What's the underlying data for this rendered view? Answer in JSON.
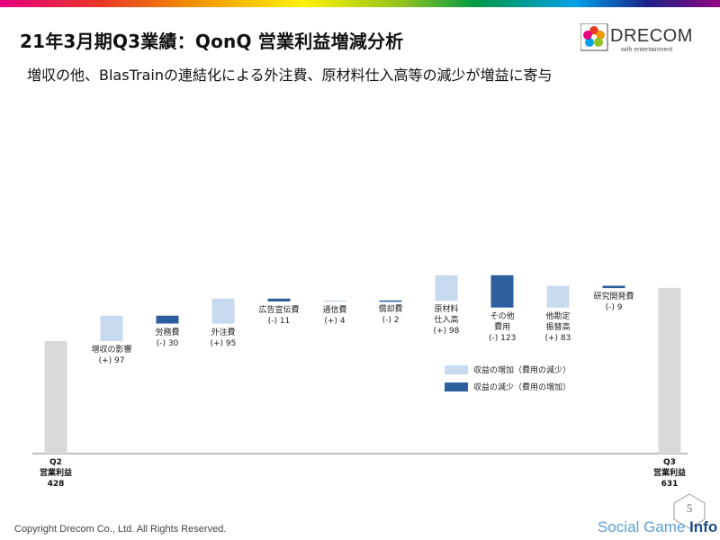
{
  "header": {
    "title": "21年3月期Q3業績：QonQ 営業利益増減分析",
    "subtitle": "増収の他、BlasTrainの連結化による外注費、原材料仕入高等の減少が増益に寄与"
  },
  "logo": {
    "name": "DRECOM",
    "tagline": "with entertainment"
  },
  "colors": {
    "increase": "#c8daf0",
    "decrease": "#2d5e9e",
    "total": "#d9d9d9",
    "axis": "#7f7f7f"
  },
  "chart_data": {
    "type": "bar",
    "subtype": "waterfall",
    "ylim": [
      0,
      1110
    ],
    "start": {
      "label_line1": "Q2",
      "label_line2": "営業利益",
      "value": 428,
      "value_text": "428"
    },
    "end": {
      "label_line1": "Q3",
      "label_line2": "営業利益",
      "value": 631,
      "value_text": "631"
    },
    "steps": [
      {
        "name": "増収の影響",
        "sign": "(+)",
        "value": 97,
        "value_text": "97",
        "effect": "increase"
      },
      {
        "name": "労務費",
        "sign": "(-)",
        "value": 30,
        "value_text": "30",
        "effect": "decrease"
      },
      {
        "name": "外注費",
        "sign": "(+)",
        "value": 95,
        "value_text": "95",
        "effect": "increase"
      },
      {
        "name": "広告宣伝費",
        "sign": "(-)",
        "value": 11,
        "value_text": "11",
        "effect": "decrease"
      },
      {
        "name": "通信費",
        "sign": "(+)",
        "value": 4,
        "value_text": "4",
        "effect": "increase"
      },
      {
        "name": "償却費",
        "sign": "(-)",
        "value": 2,
        "value_text": "2",
        "effect": "decrease"
      },
      {
        "name": "原材料\n仕入高",
        "sign": "(+)",
        "value": 98,
        "value_text": "98",
        "effect": "increase"
      },
      {
        "name": "その他\n費用",
        "sign": "(-)",
        "value": 123,
        "value_text": "123",
        "effect": "decrease"
      },
      {
        "name": "他勘定\n振替高",
        "sign": "(+)",
        "value": 83,
        "value_text": "83",
        "effect": "increase"
      },
      {
        "name": "研究開発費",
        "sign": "(-)",
        "value": 9,
        "value_text": "9",
        "effect": "decrease"
      }
    ],
    "legend": [
      {
        "label": "収益の増加（費用の減少）",
        "effect": "increase"
      },
      {
        "label": "収益の減少（費用の増加）",
        "effect": "decrease"
      }
    ]
  },
  "footer": {
    "copyright": "Copyright Drecom Co., Ltd. All Rights Reserved.",
    "page_number": "5",
    "watermark_part1": "Social Game ",
    "watermark_part2": "Info"
  }
}
